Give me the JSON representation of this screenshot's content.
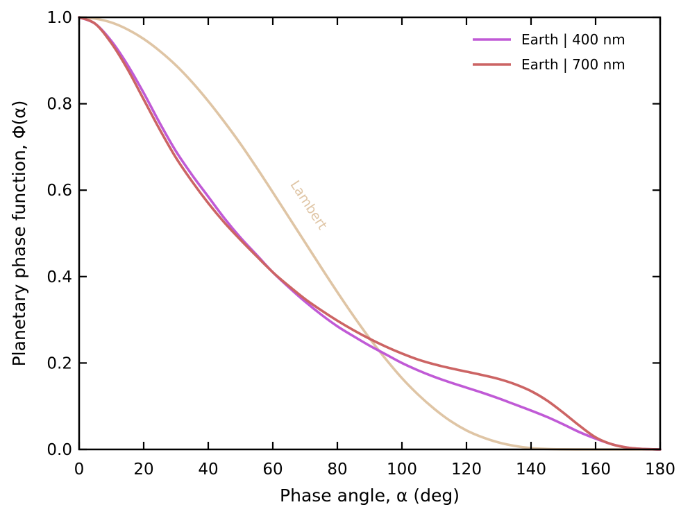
{
  "chart_data": {
    "type": "line",
    "title": "",
    "xlabel": "Phase angle, α (deg)",
    "ylabel": "Planetary phase function, Φ(α)",
    "xlim": [
      0,
      180
    ],
    "ylim": [
      0,
      1
    ],
    "xticks": [
      0,
      20,
      40,
      60,
      80,
      100,
      120,
      140,
      160,
      180
    ],
    "yticks": [
      0.0,
      0.2,
      0.4,
      0.6,
      0.8,
      1.0
    ],
    "ytick_labels": [
      "0.0",
      "0.2",
      "0.4",
      "0.6",
      "0.8",
      "1.0"
    ],
    "grid": false,
    "legend_position": "top-right",
    "x": [
      0,
      5,
      10,
      15,
      20,
      25,
      30,
      35,
      40,
      45,
      50,
      55,
      60,
      65,
      70,
      75,
      80,
      85,
      90,
      95,
      100,
      105,
      110,
      115,
      120,
      125,
      130,
      135,
      140,
      145,
      150,
      155,
      160,
      165,
      170,
      175,
      180
    ],
    "series": [
      {
        "name": "Earth | 400 nm",
        "color": "#c05ad6",
        "values": [
          1.0,
          0.985,
          0.945,
          0.89,
          0.825,
          0.755,
          0.69,
          0.635,
          0.585,
          0.535,
          0.49,
          0.45,
          0.41,
          0.375,
          0.342,
          0.312,
          0.285,
          0.262,
          0.24,
          0.22,
          0.2,
          0.183,
          0.168,
          0.155,
          0.143,
          0.131,
          0.118,
          0.104,
          0.09,
          0.075,
          0.058,
          0.04,
          0.025,
          0.012,
          0.004,
          0.001,
          0.0
        ]
      },
      {
        "name": "Earth | 700 nm",
        "color": "#cc6464",
        "values": [
          1.0,
          0.985,
          0.94,
          0.88,
          0.81,
          0.74,
          0.675,
          0.62,
          0.57,
          0.525,
          0.485,
          0.447,
          0.41,
          0.378,
          0.348,
          0.322,
          0.298,
          0.276,
          0.256,
          0.238,
          0.222,
          0.208,
          0.197,
          0.188,
          0.18,
          0.172,
          0.163,
          0.151,
          0.135,
          0.113,
          0.085,
          0.055,
          0.028,
          0.012,
          0.004,
          0.001,
          0.0
        ]
      },
      {
        "name": "Lambert",
        "color": "#dfc5a5",
        "values": [
          1.0,
          0.997,
          0.988,
          0.972,
          0.95,
          0.922,
          0.889,
          0.85,
          0.806,
          0.758,
          0.707,
          0.652,
          0.595,
          0.537,
          0.479,
          0.421,
          0.364,
          0.309,
          0.257,
          0.209,
          0.165,
          0.127,
          0.094,
          0.066,
          0.044,
          0.028,
          0.016,
          0.008,
          0.003,
          0.001,
          0.0003,
          0.0001,
          0.0,
          0.0,
          0.0,
          0.0,
          0.0
        ]
      }
    ],
    "legend_entries": [
      "Earth | 400 nm",
      "Earth | 700 nm"
    ],
    "annotations": [
      {
        "text": "Lambert",
        "series": "Lambert",
        "x": 70,
        "y": 0.56
      }
    ]
  }
}
